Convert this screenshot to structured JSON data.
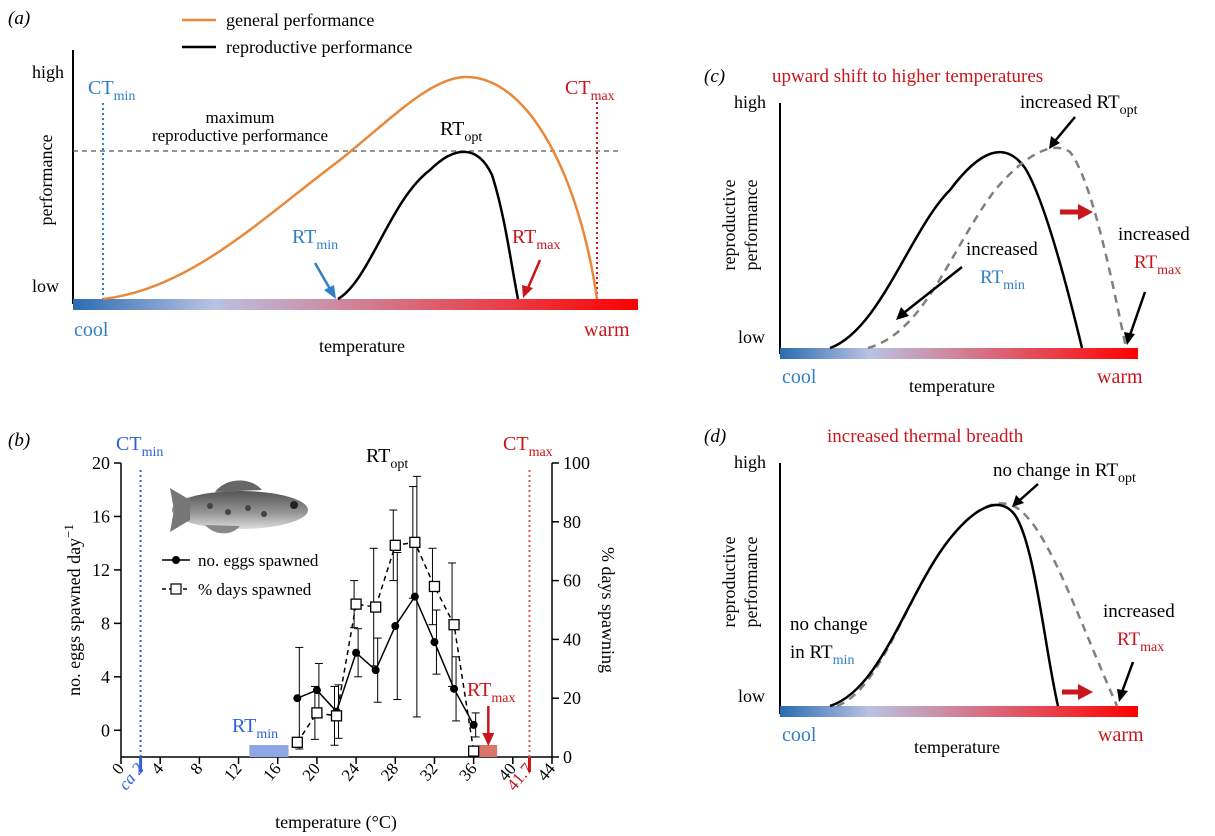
{
  "colors": {
    "orange": "#e8883a",
    "red": "#c8161c",
    "blue": "#2f7fc6",
    "dash_gray": "#808080",
    "bar_cool": "#2a6bb2",
    "bar_mid": "#b9c2e2",
    "bar_warm": "#ff0000",
    "rt_min_bar": "#8ea6e6",
    "rt_max_bar": "#d9756a"
  },
  "panel_a": {
    "label": "(a)",
    "legend_general": "general performance",
    "legend_repro": "reproductive performance",
    "ylabel": "performance",
    "high": "high",
    "low": "low",
    "cool": "cool",
    "warm": "warm",
    "xlabel": "temperature",
    "ct_min": "CT",
    "ct_min_sub": "min",
    "ct_max": "CT",
    "ct_max_sub": "max",
    "max_line1": "maximum",
    "max_line2": "reproductive performance",
    "rt_opt": "RT",
    "rt_opt_sub": "opt",
    "rt_min": "RT",
    "rt_min_sub": "min",
    "rt_max": "RT",
    "rt_max_sub": "max"
  },
  "panel_b": {
    "label": "(b)",
    "ct_min": "CT",
    "ct_min_sub": "min",
    "ct_max": "CT",
    "ct_max_sub": "max",
    "rt_opt": "RT",
    "rt_opt_sub": "opt",
    "rt_min": "RT",
    "rt_min_sub": "min",
    "rt_max": "RT",
    "rt_max_sub": "max",
    "ylabel_left": "no. eggs spawned day",
    "ylabel_left_sup": "−1",
    "ylabel_right": "% days spawning",
    "xlabel": "temperature (°C)",
    "legend_eggs": "no. eggs spawned",
    "legend_days": "% days spawned",
    "ct_min_tick": "ca 2",
    "ct_max_tick": "41.7"
  },
  "panel_c": {
    "label": "(c)",
    "title": "upward shift to higher temperatures",
    "ylabel1": "reproductive",
    "ylabel2": "performance",
    "high": "high",
    "low": "low",
    "cool": "cool",
    "warm": "warm",
    "xlabel": "temperature",
    "ann_opt": "increased RT",
    "ann_opt_sub": "opt",
    "ann_min1": "increased",
    "ann_min2": "RT",
    "ann_min2_sub": "min",
    "ann_max1": "increased",
    "ann_max2": "RT",
    "ann_max2_sub": "max"
  },
  "panel_d": {
    "label": "(d)",
    "title": "increased thermal breadth",
    "ylabel1": "reproductive",
    "ylabel2": "performance",
    "high": "high",
    "low": "low",
    "cool": "cool",
    "warm": "warm",
    "xlabel": "temperature",
    "ann_opt": "no change in RT",
    "ann_opt_sub": "opt",
    "ann_min1": "no change",
    "ann_min2": "in RT",
    "ann_min2_sub": "min",
    "ann_max1": "increased",
    "ann_max2": "RT",
    "ann_max2_sub": "max"
  },
  "chart_data": [
    {
      "panel": "b",
      "type": "line",
      "xlabel": "temperature (°C)",
      "ylabel": "no. eggs spawned day−1",
      "y2label": "% days spawning",
      "xlim": [
        0,
        44
      ],
      "ylim": [
        -2,
        20
      ],
      "y2lim": [
        0,
        100
      ],
      "x_ticks": [
        0,
        4,
        8,
        12,
        16,
        20,
        24,
        28,
        32,
        36,
        40,
        44
      ],
      "y_ticks": [
        0,
        4,
        8,
        12,
        16,
        20
      ],
      "y2_ticks": [
        0,
        20,
        40,
        60,
        80,
        100
      ],
      "series": [
        {
          "name": "no. eggs spawned",
          "axis": "left",
          "marker": "filled-circle",
          "points": [
            {
              "x": 18,
              "y": 2.4,
              "err": 3.8
            },
            {
              "x": 20,
              "y": 3.0,
              "err": 2.0
            },
            {
              "x": 22,
              "y": 1.4,
              "err": 2.0
            },
            {
              "x": 24,
              "y": 5.8,
              "err": 1.8
            },
            {
              "x": 26,
              "y": 4.5,
              "err": 2.4
            },
            {
              "x": 28,
              "y": 7.8,
              "err": 5.5
            },
            {
              "x": 30,
              "y": 10.0,
              "err": 9.0
            },
            {
              "x": 32,
              "y": 6.6,
              "err": 2.4
            },
            {
              "x": 34,
              "y": 3.1,
              "err": 2.4
            },
            {
              "x": 36,
              "y": 0.4,
              "err": 0.9
            }
          ]
        },
        {
          "name": "% days spawned",
          "axis": "right",
          "marker": "open-square",
          "points": [
            {
              "x": 18,
              "y": 5,
              "err": 0
            },
            {
              "x": 20,
              "y": 15,
              "err": 9
            },
            {
              "x": 22,
              "y": 14,
              "err": 10
            },
            {
              "x": 24,
              "y": 52,
              "err": 8
            },
            {
              "x": 26,
              "y": 51,
              "err": 20
            },
            {
              "x": 28,
              "y": 72,
              "err": 12
            },
            {
              "x": 30,
              "y": 73,
              "err": 19
            },
            {
              "x": 32,
              "y": 58,
              "err": 13
            },
            {
              "x": 34,
              "y": 45,
              "err": 21
            },
            {
              "x": 36,
              "y": 2,
              "err": 0
            }
          ]
        }
      ],
      "annotations": {
        "ct_min_x": 2,
        "ct_max_x": 41.7,
        "rt_min_range": [
          13.1,
          17.1
        ],
        "rt_max_range": [
          36.5,
          38.4
        ],
        "rt_max_arrow_x": 37.5
      }
    }
  ]
}
